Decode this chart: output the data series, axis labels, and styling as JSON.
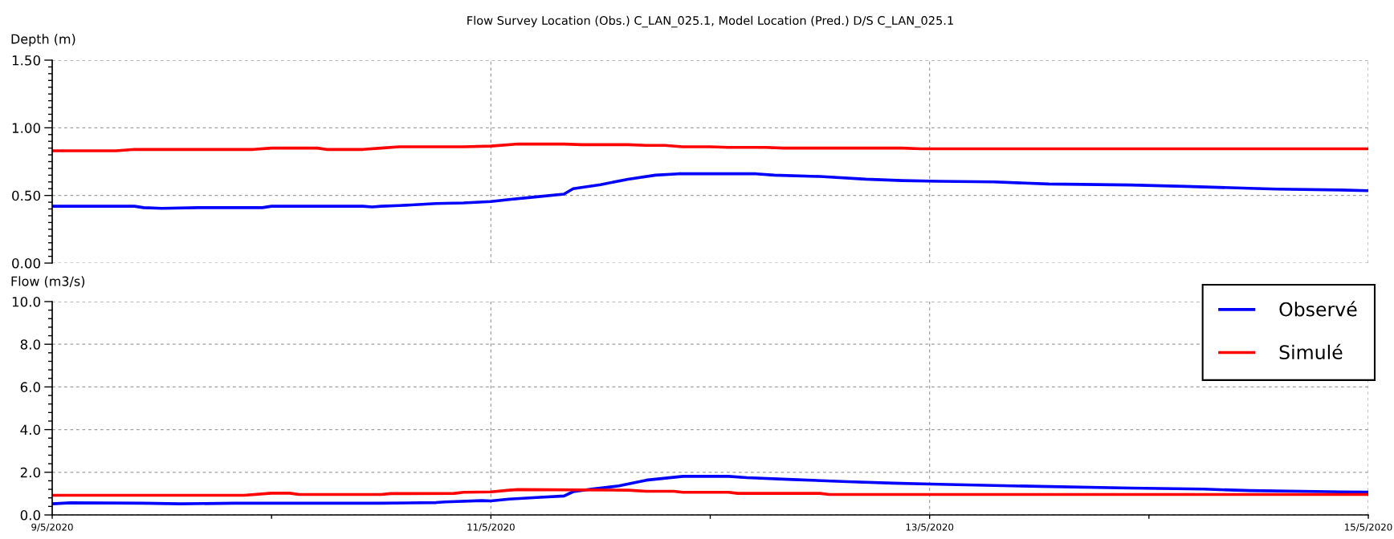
{
  "chart_data": [
    {
      "type": "line",
      "title": "Flow Survey Location (Obs.) C_LAN_025.1, Model Location (Pred.) D/S C_LAN_025.1",
      "ylabel": "Depth (m)",
      "xlim": [
        "2020-05-09",
        "2020-05-15"
      ],
      "xticks": [
        "2020-05-09",
        "2020-05-11",
        "2020-05-13",
        "2020-05-15"
      ],
      "ylim": [
        0,
        1.5
      ],
      "yticks": [
        {
          "value": 0,
          "label": "0.00"
        },
        {
          "value": 0.05,
          "label": null
        },
        {
          "value": 0.1,
          "label": null
        },
        {
          "value": 0.15,
          "label": null
        },
        {
          "value": 0.2,
          "label": null
        },
        {
          "value": 0.25,
          "label": null
        },
        {
          "value": 0.3,
          "label": null
        },
        {
          "value": 0.35,
          "label": null
        },
        {
          "value": 0.4,
          "label": null
        },
        {
          "value": 0.45,
          "label": null
        },
        {
          "value": 0.5,
          "label": "0.50"
        },
        {
          "value": 0.55,
          "label": null
        },
        {
          "value": 0.6,
          "label": null
        },
        {
          "value": 0.65,
          "label": null
        },
        {
          "value": 0.7,
          "label": null
        },
        {
          "value": 0.75,
          "label": null
        },
        {
          "value": 0.8,
          "label": null
        },
        {
          "value": 0.85,
          "label": null
        },
        {
          "value": 0.9,
          "label": null
        },
        {
          "value": 0.95,
          "label": null
        },
        {
          "value": 1.0,
          "label": "1.00"
        },
        {
          "value": 1.05,
          "label": null
        },
        {
          "value": 1.1,
          "label": null
        },
        {
          "value": 1.15,
          "label": null
        },
        {
          "value": 1.2,
          "label": null
        },
        {
          "value": 1.25,
          "label": null
        },
        {
          "value": 1.3,
          "label": null
        },
        {
          "value": 1.35,
          "label": null
        },
        {
          "value": 1.4,
          "label": null
        },
        {
          "value": 1.45,
          "label": null
        },
        {
          "value": 1.5,
          "label": "1.50"
        }
      ],
      "tick_labels": "y",
      "grid": true,
      "line_style": "solid",
      "series": [
        {
          "color": "#0000ff",
          "x": [
            "2020-05-09T00:00",
            "2020-05-09T09:00",
            "2020-05-09T10:00",
            "2020-05-09T12:00",
            "2020-05-09T16:00",
            "2020-05-09T23:00",
            "2020-05-10T00:00",
            "2020-05-10T10:00",
            "2020-05-10T11:00",
            "2020-05-10T12:00",
            "2020-05-10T14:00",
            "2020-05-10T18:00",
            "2020-05-10T21:00",
            "2020-05-11T00:00",
            "2020-05-11T02:00",
            "2020-05-11T05:00",
            "2020-05-11T08:00",
            "2020-05-11T09:00",
            "2020-05-11T12:00",
            "2020-05-11T15:00",
            "2020-05-11T18:00",
            "2020-05-11T20:30",
            "2020-05-12T05:00",
            "2020-05-12T07:00",
            "2020-05-12T12:00",
            "2020-05-12T17:00",
            "2020-05-12T21:00",
            "2020-05-13T01:00",
            "2020-05-13T07:00",
            "2020-05-13T13:00",
            "2020-05-13T22:00",
            "2020-05-14T04:00",
            "2020-05-14T11:00",
            "2020-05-14T14:00",
            "2020-05-14T21:00",
            "2020-05-15T00:00"
          ],
          "values": [
            0.42,
            0.42,
            0.41,
            0.405,
            0.41,
            0.41,
            0.42,
            0.42,
            0.415,
            0.42,
            0.425,
            0.44,
            0.445,
            0.455,
            0.47,
            0.49,
            0.51,
            0.55,
            0.58,
            0.62,
            0.65,
            0.66,
            0.66,
            0.65,
            0.64,
            0.62,
            0.61,
            0.605,
            0.6,
            0.585,
            0.577,
            0.567,
            0.553,
            0.547,
            0.54,
            0.535
          ]
        },
        {
          "color": "#ff0000",
          "x": [
            "2020-05-09T00:00",
            "2020-05-09T07:00",
            "2020-05-09T09:00",
            "2020-05-09T22:00",
            "2020-05-10T00:00",
            "2020-05-10T05:00",
            "2020-05-10T06:00",
            "2020-05-10T10:00",
            "2020-05-10T12:00",
            "2020-05-10T14:00",
            "2020-05-10T21:00",
            "2020-05-11T00:00",
            "2020-05-11T03:00",
            "2020-05-11T08:00",
            "2020-05-11T10:00",
            "2020-05-11T15:00",
            "2020-05-11T17:00",
            "2020-05-11T19:00",
            "2020-05-11T21:00",
            "2020-05-12T00:00",
            "2020-05-12T02:00",
            "2020-05-12T06:00",
            "2020-05-12T08:00",
            "2020-05-12T21:00",
            "2020-05-12T23:00",
            "2020-05-15T00:00"
          ],
          "values": [
            0.83,
            0.83,
            0.84,
            0.84,
            0.85,
            0.85,
            0.84,
            0.84,
            0.85,
            0.86,
            0.86,
            0.865,
            0.88,
            0.88,
            0.875,
            0.875,
            0.87,
            0.87,
            0.86,
            0.86,
            0.855,
            0.855,
            0.85,
            0.85,
            0.845,
            0.845
          ]
        }
      ]
    },
    {
      "type": "line",
      "ylabel": "Flow (m3/s)",
      "xlim": [
        "2020-05-09",
        "2020-05-15"
      ],
      "xticks": [
        {
          "value": "2020-05-09",
          "label": "9/5/2020"
        },
        {
          "value": "2020-05-10",
          "label": null
        },
        {
          "value": "2020-05-11",
          "label": "11/5/2020"
        },
        {
          "value": "2020-05-12",
          "label": null
        },
        {
          "value": "2020-05-13",
          "label": "13/5/2020"
        },
        {
          "value": "2020-05-14",
          "label": null
        },
        {
          "value": "2020-05-15",
          "label": "15/5/2020"
        }
      ],
      "ylim": [
        0,
        10
      ],
      "yticks": [
        {
          "value": 0,
          "label": "0.0"
        },
        {
          "value": 0.4,
          "label": null
        },
        {
          "value": 0.8,
          "label": null
        },
        {
          "value": 1.2,
          "label": null
        },
        {
          "value": 1.6,
          "label": null
        },
        {
          "value": 2,
          "label": "2.0"
        },
        {
          "value": 2.4,
          "label": null
        },
        {
          "value": 2.8,
          "label": null
        },
        {
          "value": 3.2,
          "label": null
        },
        {
          "value": 3.6,
          "label": null
        },
        {
          "value": 4,
          "label": "4.0"
        },
        {
          "value": 4.4,
          "label": null
        },
        {
          "value": 4.8,
          "label": null
        },
        {
          "value": 5.2,
          "label": null
        },
        {
          "value": 5.6,
          "label": null
        },
        {
          "value": 6,
          "label": "6.0"
        },
        {
          "value": 6.4,
          "label": null
        },
        {
          "value": 6.8,
          "label": null
        },
        {
          "value": 7.2,
          "label": null
        },
        {
          "value": 7.6,
          "label": null
        },
        {
          "value": 8,
          "label": "8.0"
        },
        {
          "value": 8.4,
          "label": null
        },
        {
          "value": 8.8,
          "label": null
        },
        {
          "value": 9.2,
          "label": null
        },
        {
          "value": 9.6,
          "label": null
        },
        {
          "value": 10,
          "label": "10.0"
        }
      ],
      "grid": true,
      "legend": "top right",
      "line_style": "solid",
      "series": [
        {
          "name": "Observé",
          "color": "#0000ff",
          "x": [
            "2020-05-09T00:00",
            "2020-05-09T02:00",
            "2020-05-09T10:00",
            "2020-05-09T14:00",
            "2020-05-09T20:00",
            "2020-05-10T12:00",
            "2020-05-10T18:00",
            "2020-05-10T19:00",
            "2020-05-10T23:00",
            "2020-05-11T00:00",
            "2020-05-11T02:00",
            "2020-05-11T05:00",
            "2020-05-11T08:00",
            "2020-05-11T09:00",
            "2020-05-11T11:00",
            "2020-05-11T14:00",
            "2020-05-11T17:00",
            "2020-05-11T21:00",
            "2020-05-12T02:00",
            "2020-05-12T04:00",
            "2020-05-12T09:00",
            "2020-05-12T15:00",
            "2020-05-12T20:00",
            "2020-05-13T01:00",
            "2020-05-13T07:00",
            "2020-05-13T12:00",
            "2020-05-13T22:00",
            "2020-05-14T06:00",
            "2020-05-14T11:00",
            "2020-05-14T21:00",
            "2020-05-15T00:00"
          ],
          "values": [
            0.52,
            0.57,
            0.55,
            0.52,
            0.55,
            0.55,
            0.58,
            0.61,
            0.67,
            0.66,
            0.74,
            0.82,
            0.89,
            1.09,
            1.21,
            1.36,
            1.63,
            1.81,
            1.81,
            1.75,
            1.66,
            1.56,
            1.49,
            1.44,
            1.38,
            1.34,
            1.26,
            1.21,
            1.14,
            1.08,
            1.07
          ]
        },
        {
          "name": "Simulé",
          "color": "#ff0000",
          "x": [
            "2020-05-09T00:00",
            "2020-05-09T21:00",
            "2020-05-10T00:00",
            "2020-05-10T02:00",
            "2020-05-10T03:00",
            "2020-05-10T12:00",
            "2020-05-10T13:00",
            "2020-05-10T20:00",
            "2020-05-10T21:00",
            "2020-05-11T00:00",
            "2020-05-11T02:00",
            "2020-05-11T03:00",
            "2020-05-11T15:00",
            "2020-05-11T17:00",
            "2020-05-11T20:00",
            "2020-05-11T21:00",
            "2020-05-12T02:00",
            "2020-05-12T03:00",
            "2020-05-12T12:00",
            "2020-05-12T13:00",
            "2020-05-15T00:00"
          ],
          "values": [
            0.92,
            0.92,
            1.02,
            1.02,
            0.96,
            0.96,
            1.0,
            1.01,
            1.06,
            1.08,
            1.16,
            1.19,
            1.16,
            1.11,
            1.11,
            1.06,
            1.06,
            1.01,
            1.01,
            0.96,
            0.96
          ]
        }
      ]
    }
  ]
}
